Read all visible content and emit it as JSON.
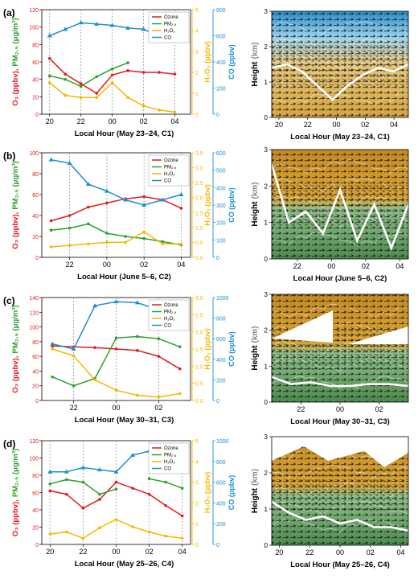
{
  "colors": {
    "ozone": "#e41a1c",
    "pm25": "#2ca02c",
    "h2o2": "#f5b800",
    "co": "#1f8fd1",
    "grid": "#8c8c8c",
    "height_line": "#ffffff"
  },
  "axis_labels": {
    "left_o3": "O₃ (ppbv),",
    "left_pm": "PM₂.₅ (μg/m³)",
    "h2o2": "H₂O₂ (ppbv)",
    "co": "CO (ppbv)",
    "height_word": "Height",
    "height_unit": "(km)"
  },
  "chart_data": [
    {
      "type": "line",
      "panel_label": "(a)",
      "xlabel": "Local Hour (May 23–24, C1)",
      "x_ticks": [
        {
          "x": 20,
          "label": "20"
        },
        {
          "x": 22,
          "label": "22"
        },
        {
          "x": 24,
          "label": "00"
        },
        {
          "x": 26,
          "label": "02"
        },
        {
          "x": 28,
          "label": "04"
        }
      ],
      "x_range": [
        19.5,
        29
      ],
      "left_axis": {
        "range": [
          0,
          120
        ],
        "ticks": [
          0,
          20,
          40,
          60,
          80,
          100,
          120
        ]
      },
      "h2o2_axis": {
        "range": [
          0,
          5
        ],
        "ticks": [
          0,
          1,
          2,
          3,
          4,
          5
        ],
        "tick_labels": [
          "0",
          "1",
          "2",
          "3",
          "4",
          "5"
        ]
      },
      "co_axis": {
        "range": [
          0,
          800
        ],
        "ticks": [
          0,
          200,
          400,
          600,
          800
        ]
      },
      "legend_entries": [
        "Ozone",
        "PM₂.₅",
        "H₂O₂",
        "CO"
      ],
      "series": [
        {
          "name": "Ozone",
          "axis": "left",
          "x": [
            20,
            21,
            22,
            23,
            24,
            25,
            26,
            27,
            28
          ],
          "y": [
            64,
            46,
            35,
            24,
            45,
            50,
            48,
            48,
            46
          ]
        },
        {
          "name": "PM₂.₅",
          "axis": "left",
          "x": [
            20,
            21,
            22,
            23,
            24,
            25
          ],
          "y": [
            44,
            40,
            32,
            43,
            52,
            59
          ]
        },
        {
          "name": "H₂O₂",
          "axis": "h2o2",
          "x": [
            20,
            21,
            22,
            23,
            24,
            25,
            26,
            27,
            28
          ],
          "y": [
            1.5,
            0.9,
            0.8,
            0.8,
            1.5,
            0.8,
            0.4,
            0.2,
            0.1
          ]
        },
        {
          "name": "CO",
          "axis": "co",
          "x": [
            20,
            21,
            22,
            23,
            24,
            25,
            26,
            27,
            28
          ],
          "y": [
            600,
            650,
            700,
            690,
            680,
            660,
            650,
            600,
            620
          ]
        }
      ],
      "profile": {
        "y_range": [
          0,
          3
        ],
        "y_ticks": [
          0,
          1,
          2,
          3
        ],
        "line_height": [
          1.4,
          1.5,
          1.3,
          0.9,
          0.5,
          0.9,
          1.2,
          1.4,
          1.3,
          1.5
        ]
      }
    },
    {
      "type": "line",
      "panel_label": "(b)",
      "xlabel": "Local Hour (June 5–6, C2)",
      "x_ticks": [
        {
          "x": 22,
          "label": "22"
        },
        {
          "x": 24,
          "label": "00"
        },
        {
          "x": 26,
          "label": "02"
        },
        {
          "x": 28,
          "label": "04"
        }
      ],
      "x_range": [
        20.5,
        28.5
      ],
      "left_axis": {
        "range": [
          0,
          100
        ],
        "ticks": [
          0,
          20,
          40,
          60,
          80,
          100
        ]
      },
      "h2o2_axis": {
        "range": [
          0,
          3.5
        ],
        "ticks": [
          0,
          0.5,
          1,
          1.5,
          2,
          2.5,
          3,
          3.5
        ],
        "tick_labels": [
          "0.0",
          "0.5",
          "1.0",
          "1.5",
          "2.0",
          "2.5",
          "3.0",
          "3.5"
        ]
      },
      "co_axis": {
        "range": [
          0,
          600
        ],
        "ticks": [
          0,
          100,
          200,
          300,
          400,
          500,
          600
        ]
      },
      "legend_entries": [
        "Ozone",
        "PM₂.₅",
        "H₂O₂",
        "CO"
      ],
      "series": [
        {
          "name": "Ozone",
          "axis": "left",
          "x": [
            21,
            22,
            23,
            24,
            25,
            26,
            27,
            28
          ],
          "y": [
            35,
            40,
            48,
            52,
            56,
            58,
            55,
            47
          ]
        },
        {
          "name": "PM₂.₅",
          "axis": "left",
          "x": [
            21,
            22,
            23,
            24,
            25,
            26,
            27,
            28
          ],
          "y": [
            26,
            28,
            32,
            23,
            20,
            18,
            15,
            12
          ]
        },
        {
          "name": "H₂O₂",
          "axis": "h2o2",
          "x": [
            21,
            22,
            23,
            24,
            25,
            26,
            27,
            28
          ],
          "y": [
            0.35,
            0.4,
            0.45,
            0.5,
            0.5,
            0.85,
            0.45,
            0.45
          ]
        },
        {
          "name": "CO",
          "axis": "co",
          "x": [
            21,
            22,
            23,
            24,
            25,
            26,
            27,
            28
          ],
          "y": [
            560,
            540,
            420,
            380,
            330,
            300,
            330,
            360
          ]
        }
      ],
      "profile": {
        "y_range": [
          0,
          3
        ],
        "y_ticks": [
          0,
          1,
          2,
          3
        ],
        "line_height": [
          2.6,
          1.0,
          1.3,
          0.7,
          1.9,
          0.5,
          1.5,
          0.3,
          1.5
        ]
      }
    },
    {
      "type": "line",
      "panel_label": "(c)",
      "xlabel": "Local Hour (May 30–31, C3)",
      "x_ticks": [
        {
          "x": 22,
          "label": "22"
        },
        {
          "x": 24,
          "label": "00"
        },
        {
          "x": 26,
          "label": "02"
        }
      ],
      "x_range": [
        20.5,
        27.5
      ],
      "left_axis": {
        "range": [
          0,
          140
        ],
        "ticks": [
          0,
          20,
          40,
          60,
          80,
          100,
          120,
          140
        ]
      },
      "h2o2_axis": {
        "range": [
          0,
          3
        ],
        "ticks": [
          0,
          0.5,
          1,
          1.5,
          2,
          2.5,
          3
        ],
        "tick_labels": [
          "0.0",
          "0.5",
          "1.0",
          "1.5",
          "2.0",
          "2.5",
          "3.0"
        ]
      },
      "co_axis": {
        "range": [
          0,
          1000
        ],
        "ticks": [
          0,
          200,
          400,
          600,
          800,
          1000
        ]
      },
      "legend_entries": [
        "Ozone",
        "PM₂.₅",
        "H₂O₂",
        "CO"
      ],
      "series": [
        {
          "name": "Ozone",
          "axis": "left",
          "x": [
            21,
            22,
            23,
            24,
            25,
            26,
            27
          ],
          "y": [
            74,
            73,
            72,
            70,
            68,
            60,
            43
          ]
        },
        {
          "name": "PM₂.₅",
          "axis": "left",
          "x": [
            21,
            22,
            23,
            24,
            25,
            26,
            27
          ],
          "y": [
            32,
            20,
            30,
            85,
            87,
            84,
            73
          ]
        },
        {
          "name": "H₂O₂",
          "axis": "h2o2",
          "x": [
            21,
            22,
            23,
            24,
            25,
            26,
            27
          ],
          "y": [
            1.5,
            1.3,
            0.6,
            0.3,
            0.15,
            0.1,
            0.2
          ]
        },
        {
          "name": "CO",
          "axis": "co",
          "x": [
            21,
            22,
            23,
            24,
            25,
            26,
            27
          ],
          "y": [
            550,
            500,
            920,
            960,
            950,
            880,
            870
          ]
        }
      ],
      "profile": {
        "y_range": [
          0,
          3
        ],
        "y_ticks": [
          0,
          1,
          2,
          3
        ],
        "line_height": [
          0.7,
          0.5,
          0.55,
          0.45,
          0.45,
          0.5,
          0.5,
          0.45
        ]
      }
    },
    {
      "type": "line",
      "panel_label": "(d)",
      "xlabel": "Local Hour (May 25–26, C4)",
      "x_ticks": [
        {
          "x": 20,
          "label": "20"
        },
        {
          "x": 22,
          "label": "22"
        },
        {
          "x": 24,
          "label": "00"
        },
        {
          "x": 26,
          "label": "02"
        },
        {
          "x": 28,
          "label": "04"
        }
      ],
      "x_range": [
        19.5,
        28.5
      ],
      "left_axis": {
        "range": [
          0,
          120
        ],
        "ticks": [
          0,
          20,
          40,
          60,
          80,
          100,
          120
        ]
      },
      "h2o2_axis": {
        "range": [
          0,
          5
        ],
        "ticks": [
          0,
          1,
          2,
          3,
          4,
          5
        ],
        "tick_labels": [
          "0",
          "1",
          "2",
          "3",
          "4",
          "5"
        ]
      },
      "co_axis": {
        "range": [
          0,
          1000
        ],
        "ticks": [
          0,
          200,
          400,
          600,
          800,
          1000
        ]
      },
      "legend_entries": [
        "Ozone",
        "PM₂.₅",
        "H₂O₂",
        "CO"
      ],
      "series": [
        {
          "name": "Ozone",
          "axis": "left",
          "x": [
            20,
            21,
            22,
            23,
            24,
            25,
            26,
            27,
            28
          ],
          "y": [
            62,
            58,
            42,
            52,
            72,
            65,
            58,
            45,
            33
          ]
        },
        {
          "name": "PM₂.₅",
          "axis": "left",
          "x": [
            20,
            21,
            22,
            23,
            24,
            25,
            26,
            27,
            28
          ],
          "y": [
            70,
            75,
            72,
            58,
            64,
            null,
            76,
            72,
            65
          ]
        },
        {
          "name": "H₂O₂",
          "axis": "h2o2",
          "x": [
            20,
            21,
            22,
            23,
            24,
            25,
            26,
            27,
            28
          ],
          "y": [
            0.5,
            0.6,
            0.3,
            0.8,
            1.2,
            0.85,
            0.6,
            0.4,
            0.3
          ]
        },
        {
          "name": "CO",
          "axis": "co",
          "x": [
            20,
            21,
            22,
            23,
            24,
            25,
            26,
            27,
            28
          ],
          "y": [
            700,
            700,
            740,
            720,
            700,
            860,
            900,
            880,
            860
          ]
        }
      ],
      "profile": {
        "y_range": [
          0,
          3
        ],
        "y_ticks": [
          0,
          1,
          2,
          3
        ],
        "line_height": [
          1.2,
          0.9,
          0.7,
          0.8,
          0.6,
          0.7,
          0.5,
          0.5,
          0.4
        ]
      }
    }
  ]
}
